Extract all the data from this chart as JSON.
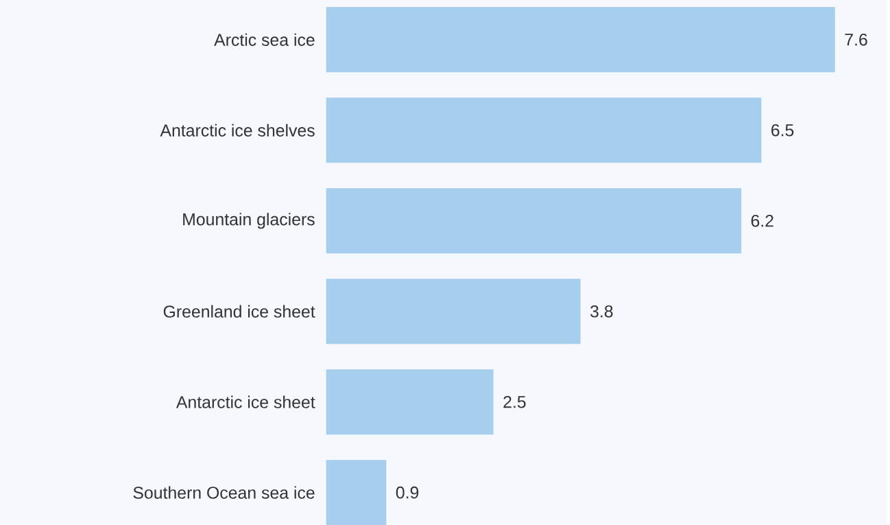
{
  "chart_data": {
    "type": "bar",
    "orientation": "horizontal",
    "categories": [
      "Arctic sea ice",
      "Antarctic ice shelves",
      "Mountain glaciers",
      "Greenland ice sheet",
      "Antarctic ice sheet",
      "Southern Ocean sea ice"
    ],
    "values": [
      7.6,
      6.5,
      6.2,
      3.8,
      2.5,
      0.9
    ],
    "color": "#a6cfee",
    "data_labels": true
  }
}
